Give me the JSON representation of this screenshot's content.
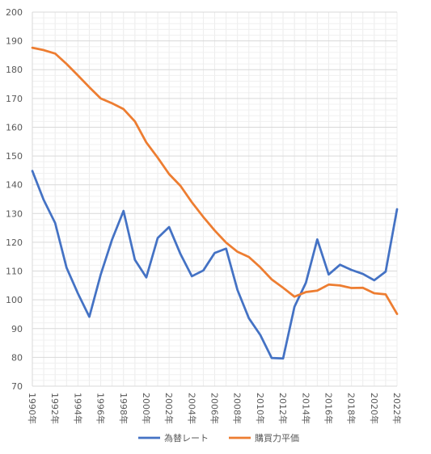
{
  "chart_data": {
    "type": "line",
    "title": "",
    "xlabel": "",
    "ylabel": "",
    "ylim": [
      70,
      200
    ],
    "y_ticks": [
      70,
      80,
      90,
      100,
      110,
      120,
      130,
      140,
      150,
      160,
      170,
      180,
      190,
      200
    ],
    "x": [
      1990,
      1991,
      1992,
      1993,
      1994,
      1995,
      1996,
      1997,
      1998,
      1999,
      2000,
      2001,
      2002,
      2003,
      2004,
      2005,
      2006,
      2007,
      2008,
      2009,
      2010,
      2011,
      2012,
      2013,
      2014,
      2015,
      2016,
      2017,
      2018,
      2019,
      2020,
      2021,
      2022
    ],
    "x_tick_labels": [
      "1990年",
      "1992年",
      "1994年",
      "1996年",
      "1998年",
      "2000年",
      "2002年",
      "2004年",
      "2006年",
      "2008年",
      "2010年",
      "2012年",
      "2014年",
      "2016年",
      "2018年",
      "2020年",
      "2022年"
    ],
    "x_tick_years": [
      1990,
      1992,
      1994,
      1996,
      1998,
      2000,
      2002,
      2004,
      2006,
      2008,
      2010,
      2012,
      2014,
      2016,
      2018,
      2020,
      2022
    ],
    "grid": true,
    "legend_position": "bottom",
    "series": [
      {
        "name": "為替レート",
        "color": "#4472C4",
        "values": [
          144.8,
          134.7,
          126.7,
          111.2,
          102.2,
          94.1,
          108.8,
          121.0,
          130.9,
          113.9,
          107.8,
          121.5,
          125.3,
          115.9,
          108.2,
          110.2,
          116.3,
          117.8,
          103.4,
          93.6,
          87.8,
          79.8,
          79.6,
          97.6,
          105.9,
          121.0,
          108.8,
          112.2,
          110.4,
          109.0,
          106.8,
          109.8,
          131.5
        ]
      },
      {
        "name": "購買力平価",
        "color": "#ED7D31",
        "values": [
          187.6,
          186.8,
          185.6,
          182.0,
          178.0,
          173.9,
          170.0,
          168.3,
          166.3,
          162.0,
          154.7,
          149.4,
          143.7,
          139.6,
          133.9,
          128.8,
          124.1,
          119.9,
          116.7,
          114.9,
          111.3,
          107.1,
          104.2,
          101.1,
          102.7,
          103.2,
          105.3,
          105.0,
          104.1,
          104.2,
          102.3,
          101.9,
          95.1
        ]
      }
    ]
  }
}
